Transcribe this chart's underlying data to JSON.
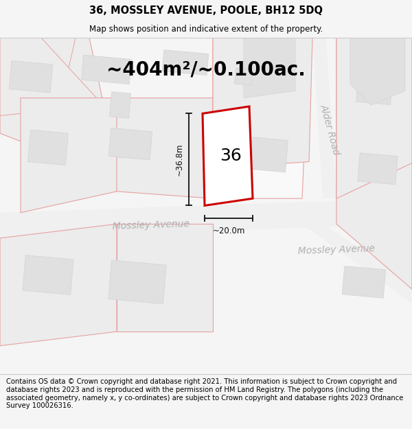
{
  "title": "36, MOSSLEY AVENUE, POOLE, BH12 5DQ",
  "subtitle": "Map shows position and indicative extent of the property.",
  "area_text": "~404m²/~0.100ac.",
  "house_number": "36",
  "dim_width": "~20.0m",
  "dim_height": "~36.8m",
  "street_mossley_center": "Mossley Avenue",
  "street_mossley_lower": "Mossley Avenue",
  "street_alder": "Alder Road",
  "footer_text": "Contains OS data © Crown copyright and database right 2021. This information is subject to Crown copyright and database rights 2023 and is reproduced with the permission of HM Land Registry. The polygons (including the associated geometry, namely x, y co-ordinates) are subject to Crown copyright and database rights 2023 Ordnance Survey 100026316.",
  "bg_color": "#f5f5f5",
  "map_bg": "#f8f8f8",
  "road_fill": "#f0f0f0",
  "plot_fill": "#ececec",
  "building_fill": "#e0e0e0",
  "road_stroke": "#e8a0a0",
  "plot_stroke": "#e8a0a0",
  "building_stroke": "#d8d8d8",
  "highlight_stroke": "#cc0000",
  "highlight_fill": "#ffffff",
  "dim_color": "#111111",
  "street_color": "#b0b0b0",
  "title_fontsize": 10.5,
  "subtitle_fontsize": 8.5,
  "area_fontsize": 20,
  "house_fontsize": 18,
  "street_fontsize": 10,
  "dim_fontsize": 8.5,
  "footer_fontsize": 7.2
}
